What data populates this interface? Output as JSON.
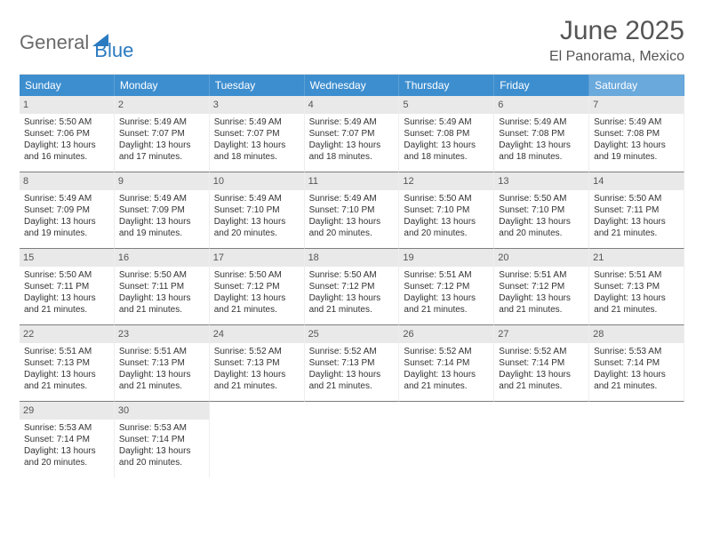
{
  "logo": {
    "part1": "General",
    "part2": "Blue"
  },
  "header": {
    "title": "June 2025",
    "location": "El Panorama, Mexico"
  },
  "colors": {
    "dayhead_bg": "#3d8ecf",
    "saturday_bg": "#6aa9dc",
    "daynum_bg": "#e9e9e9",
    "cell_bottom_border": "#7d7d7d"
  },
  "weekdays": [
    "Sunday",
    "Monday",
    "Tuesday",
    "Wednesday",
    "Thursday",
    "Friday",
    "Saturday"
  ],
  "labels": {
    "sunrise": "Sunrise:",
    "sunset": "Sunset:",
    "daylight": "Daylight:"
  },
  "days": [
    {
      "n": 1,
      "sr": "5:50 AM",
      "ss": "7:06 PM",
      "dl": "13 hours and 16 minutes."
    },
    {
      "n": 2,
      "sr": "5:49 AM",
      "ss": "7:07 PM",
      "dl": "13 hours and 17 minutes."
    },
    {
      "n": 3,
      "sr": "5:49 AM",
      "ss": "7:07 PM",
      "dl": "13 hours and 18 minutes."
    },
    {
      "n": 4,
      "sr": "5:49 AM",
      "ss": "7:07 PM",
      "dl": "13 hours and 18 minutes."
    },
    {
      "n": 5,
      "sr": "5:49 AM",
      "ss": "7:08 PM",
      "dl": "13 hours and 18 minutes."
    },
    {
      "n": 6,
      "sr": "5:49 AM",
      "ss": "7:08 PM",
      "dl": "13 hours and 18 minutes."
    },
    {
      "n": 7,
      "sr": "5:49 AM",
      "ss": "7:08 PM",
      "dl": "13 hours and 19 minutes."
    },
    {
      "n": 8,
      "sr": "5:49 AM",
      "ss": "7:09 PM",
      "dl": "13 hours and 19 minutes."
    },
    {
      "n": 9,
      "sr": "5:49 AM",
      "ss": "7:09 PM",
      "dl": "13 hours and 19 minutes."
    },
    {
      "n": 10,
      "sr": "5:49 AM",
      "ss": "7:10 PM",
      "dl": "13 hours and 20 minutes."
    },
    {
      "n": 11,
      "sr": "5:49 AM",
      "ss": "7:10 PM",
      "dl": "13 hours and 20 minutes."
    },
    {
      "n": 12,
      "sr": "5:50 AM",
      "ss": "7:10 PM",
      "dl": "13 hours and 20 minutes."
    },
    {
      "n": 13,
      "sr": "5:50 AM",
      "ss": "7:10 PM",
      "dl": "13 hours and 20 minutes."
    },
    {
      "n": 14,
      "sr": "5:50 AM",
      "ss": "7:11 PM",
      "dl": "13 hours and 21 minutes."
    },
    {
      "n": 15,
      "sr": "5:50 AM",
      "ss": "7:11 PM",
      "dl": "13 hours and 21 minutes."
    },
    {
      "n": 16,
      "sr": "5:50 AM",
      "ss": "7:11 PM",
      "dl": "13 hours and 21 minutes."
    },
    {
      "n": 17,
      "sr": "5:50 AM",
      "ss": "7:12 PM",
      "dl": "13 hours and 21 minutes."
    },
    {
      "n": 18,
      "sr": "5:50 AM",
      "ss": "7:12 PM",
      "dl": "13 hours and 21 minutes."
    },
    {
      "n": 19,
      "sr": "5:51 AM",
      "ss": "7:12 PM",
      "dl": "13 hours and 21 minutes."
    },
    {
      "n": 20,
      "sr": "5:51 AM",
      "ss": "7:12 PM",
      "dl": "13 hours and 21 minutes."
    },
    {
      "n": 21,
      "sr": "5:51 AM",
      "ss": "7:13 PM",
      "dl": "13 hours and 21 minutes."
    },
    {
      "n": 22,
      "sr": "5:51 AM",
      "ss": "7:13 PM",
      "dl": "13 hours and 21 minutes."
    },
    {
      "n": 23,
      "sr": "5:51 AM",
      "ss": "7:13 PM",
      "dl": "13 hours and 21 minutes."
    },
    {
      "n": 24,
      "sr": "5:52 AM",
      "ss": "7:13 PM",
      "dl": "13 hours and 21 minutes."
    },
    {
      "n": 25,
      "sr": "5:52 AM",
      "ss": "7:13 PM",
      "dl": "13 hours and 21 minutes."
    },
    {
      "n": 26,
      "sr": "5:52 AM",
      "ss": "7:14 PM",
      "dl": "13 hours and 21 minutes."
    },
    {
      "n": 27,
      "sr": "5:52 AM",
      "ss": "7:14 PM",
      "dl": "13 hours and 21 minutes."
    },
    {
      "n": 28,
      "sr": "5:53 AM",
      "ss": "7:14 PM",
      "dl": "13 hours and 21 minutes."
    },
    {
      "n": 29,
      "sr": "5:53 AM",
      "ss": "7:14 PM",
      "dl": "13 hours and 20 minutes."
    },
    {
      "n": 30,
      "sr": "5:53 AM",
      "ss": "7:14 PM",
      "dl": "13 hours and 20 minutes."
    }
  ],
  "layout": {
    "start_weekday": 0,
    "rows": 5,
    "cols": 7
  }
}
